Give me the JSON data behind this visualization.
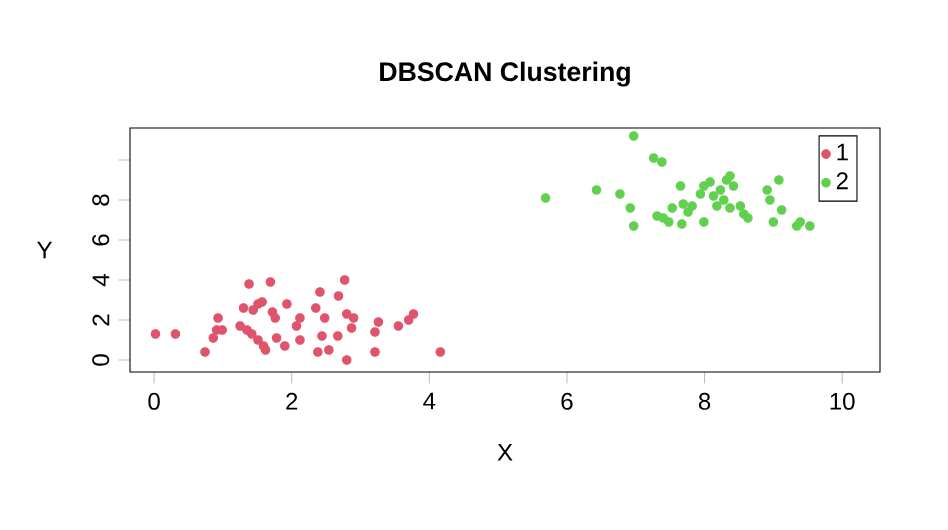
{
  "chart_data": {
    "type": "scatter",
    "title": "DBSCAN Clustering",
    "xlabel": "X",
    "ylabel": "Y",
    "xlim": [
      -0.35,
      10.55
    ],
    "ylim": [
      -0.6,
      11.6
    ],
    "xticks": [
      0,
      2,
      4,
      6,
      8,
      10
    ],
    "yticks": [
      0,
      2,
      4,
      6,
      8,
      {
        "value": 10,
        "label": null
      }
    ],
    "marker": "circle",
    "grid": false,
    "legend": "top right",
    "series": [
      {
        "name": "1",
        "color": "#df536b",
        "x": [
          0.02,
          0.31,
          0.74,
          0.86,
          0.91,
          0.93,
          0.99,
          1.25,
          1.3,
          1.38,
          1.35,
          1.42,
          1.44,
          1.51,
          1.51,
          1.57,
          1.59,
          1.62,
          1.69,
          1.72,
          1.76,
          1.78,
          1.9,
          1.93,
          2.07,
          2.12,
          2.12,
          2.35,
          2.41,
          2.38,
          2.44,
          2.48,
          2.54,
          2.67,
          2.68,
          2.77,
          2.8,
          2.8,
          2.87,
          2.9,
          3.21,
          3.21,
          3.26,
          3.55,
          3.7,
          3.77,
          4.16
        ],
        "values": [
          1.3,
          1.3,
          0.4,
          1.1,
          1.5,
          2.1,
          1.5,
          1.7,
          2.6,
          3.8,
          1.5,
          1.3,
          2.5,
          2.8,
          1.0,
          2.9,
          0.7,
          0.5,
          3.9,
          2.4,
          2.1,
          1.1,
          0.7,
          2.8,
          1.7,
          2.1,
          1.0,
          2.6,
          3.4,
          0.4,
          1.2,
          2.1,
          0.5,
          1.2,
          3.2,
          4.0,
          2.3,
          0.0,
          1.6,
          2.1,
          0.4,
          1.4,
          1.9,
          1.7,
          2.0,
          2.3,
          0.4
        ]
      },
      {
        "name": "2",
        "color": "#61d04f",
        "x": [
          5.69,
          6.43,
          6.77,
          6.92,
          6.97,
          6.97,
          7.26,
          7.38,
          7.31,
          7.4,
          7.48,
          7.53,
          7.65,
          7.67,
          7.69,
          7.76,
          7.82,
          7.94,
          7.99,
          7.99,
          8.08,
          8.13,
          8.18,
          8.23,
          8.28,
          8.32,
          8.37,
          8.37,
          8.42,
          8.52,
          8.57,
          8.63,
          8.91,
          8.95,
          9.0,
          9.08,
          9.12,
          9.34,
          9.39,
          9.53
        ],
        "values": [
          8.1,
          8.5,
          8.3,
          7.6,
          6.7,
          11.2,
          10.1,
          9.9,
          7.2,
          7.1,
          6.9,
          7.6,
          8.7,
          6.8,
          7.8,
          7.4,
          7.7,
          8.3,
          6.9,
          8.7,
          8.9,
          8.2,
          7.7,
          8.5,
          8.0,
          9.0,
          9.2,
          7.6,
          8.7,
          7.7,
          7.3,
          7.1,
          8.5,
          8.0,
          6.9,
          9.0,
          7.5,
          6.7,
          6.9,
          6.7
        ]
      }
    ]
  }
}
